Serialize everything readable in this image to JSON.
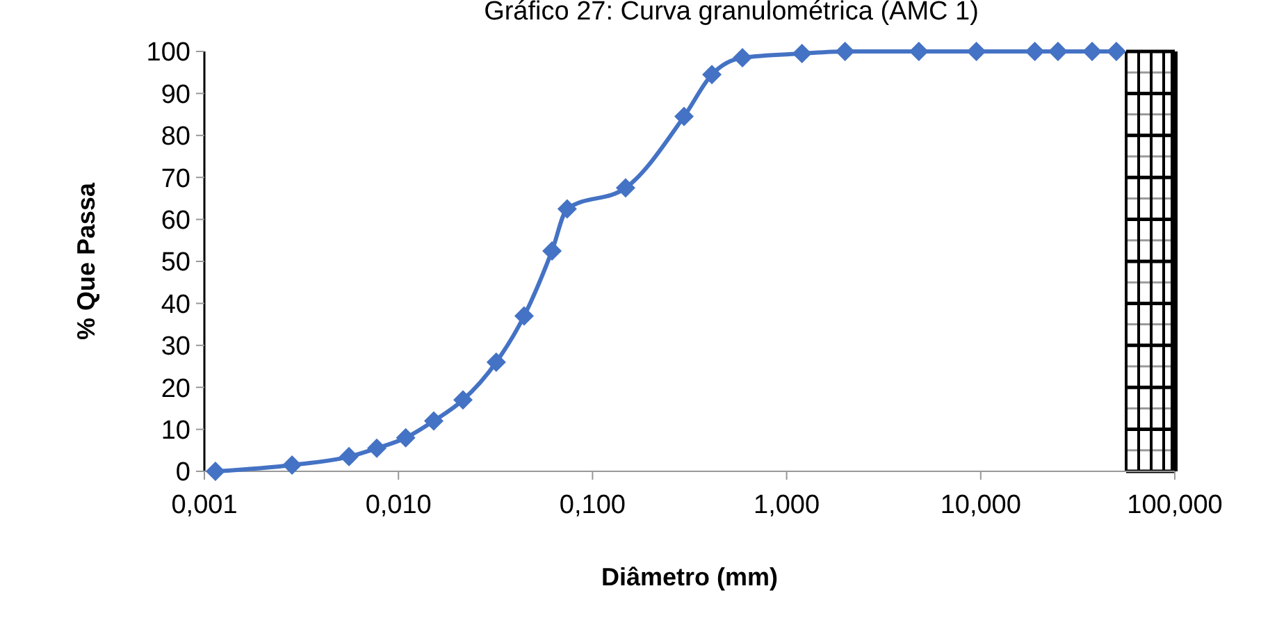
{
  "chart_data": {
    "type": "line",
    "title": "Gráfico 27: Curva granulométrica (AMC 1)",
    "xlabel": "Diâmetro (mm)",
    "ylabel": "% Que Passa",
    "log": "x",
    "x": [
      0.00114,
      0.00283,
      0.00556,
      0.00773,
      0.0109,
      0.0152,
      0.0215,
      0.0319,
      0.0444,
      0.0618,
      0.074,
      0.148,
      0.296,
      0.412,
      0.592,
      1.2,
      2,
      4.8,
      9.5,
      19,
      25,
      37.5,
      50
    ],
    "series": [
      {
        "color": "#4472c4",
        "values": [
          0,
          1.5,
          3.5,
          5.5,
          8,
          12,
          17,
          26,
          37,
          52.5,
          62.5,
          67.5,
          84.5,
          94.5,
          98.5,
          99.5,
          100,
          100,
          100,
          100,
          100,
          100,
          100
        ]
      }
    ],
    "xlim": [
      0.001,
      100
    ],
    "xticks": [
      {
        "value": 0.001,
        "label": "0,001"
      },
      {
        "value": 0.01,
        "label": "0,010"
      },
      {
        "value": 0.1,
        "label": "0,100"
      },
      {
        "value": 1,
        "label": "1,000"
      },
      {
        "value": 10,
        "label": "10,000"
      },
      {
        "value": 100,
        "label": "100,000"
      }
    ],
    "ylim": [
      0,
      100
    ],
    "yticks": [
      0,
      10,
      20,
      30,
      40,
      50,
      60,
      70,
      80,
      90,
      100
    ],
    "marker": "diamond",
    "line_style": "solid",
    "grid": false
  }
}
